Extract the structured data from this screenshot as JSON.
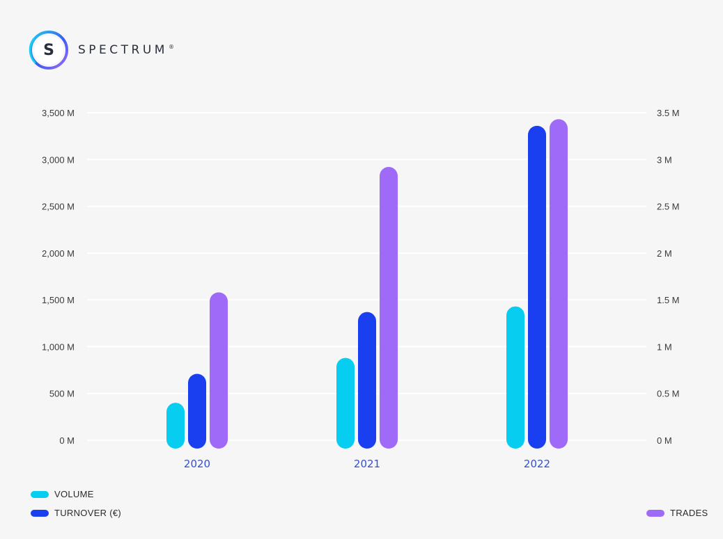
{
  "brand": {
    "name": "SPECTRUM",
    "mark": "S",
    "trademark": "®"
  },
  "colors": {
    "volume": "#07cdf0",
    "turnover": "#1a3ff0",
    "trades": "#9f6af7",
    "grid": "#ffffff",
    "category_label": "#2f4fd9"
  },
  "chart_data": {
    "type": "bar",
    "categories": [
      "2020",
      "2021",
      "2022"
    ],
    "series": [
      {
        "name": "VOLUME",
        "axis": "left",
        "values": [
          400,
          880,
          1430
        ]
      },
      {
        "name": "TURNOVER (€)",
        "axis": "left",
        "values": [
          710,
          1370,
          3360
        ]
      },
      {
        "name": "TRADES",
        "axis": "right",
        "values": [
          1.58,
          2.92,
          3.43
        ]
      }
    ],
    "y_left": {
      "range": [
        0,
        3500
      ],
      "ticks": [
        0,
        500,
        1000,
        1500,
        2000,
        2500,
        3000,
        3500
      ],
      "tick_labels": [
        "0 M",
        "500 M",
        "1,000 M",
        "1,500 M",
        "2,000 M",
        "2,500 M",
        "3,000 M",
        "3,500 M"
      ]
    },
    "y_right": {
      "range": [
        0,
        3.5
      ],
      "ticks": [
        0,
        0.5,
        1,
        1.5,
        2,
        2.5,
        3,
        3.5
      ],
      "tick_labels": [
        "0 M",
        "0.5 M",
        "1 M",
        "1.5 M",
        "2 M",
        "2.5 M",
        "3 M",
        "3.5 M"
      ]
    },
    "grid": true,
    "legend_placement": "bottom"
  },
  "legend": {
    "volume": "VOLUME",
    "turnover": "TURNOVER (€)",
    "trades": "TRADES"
  }
}
